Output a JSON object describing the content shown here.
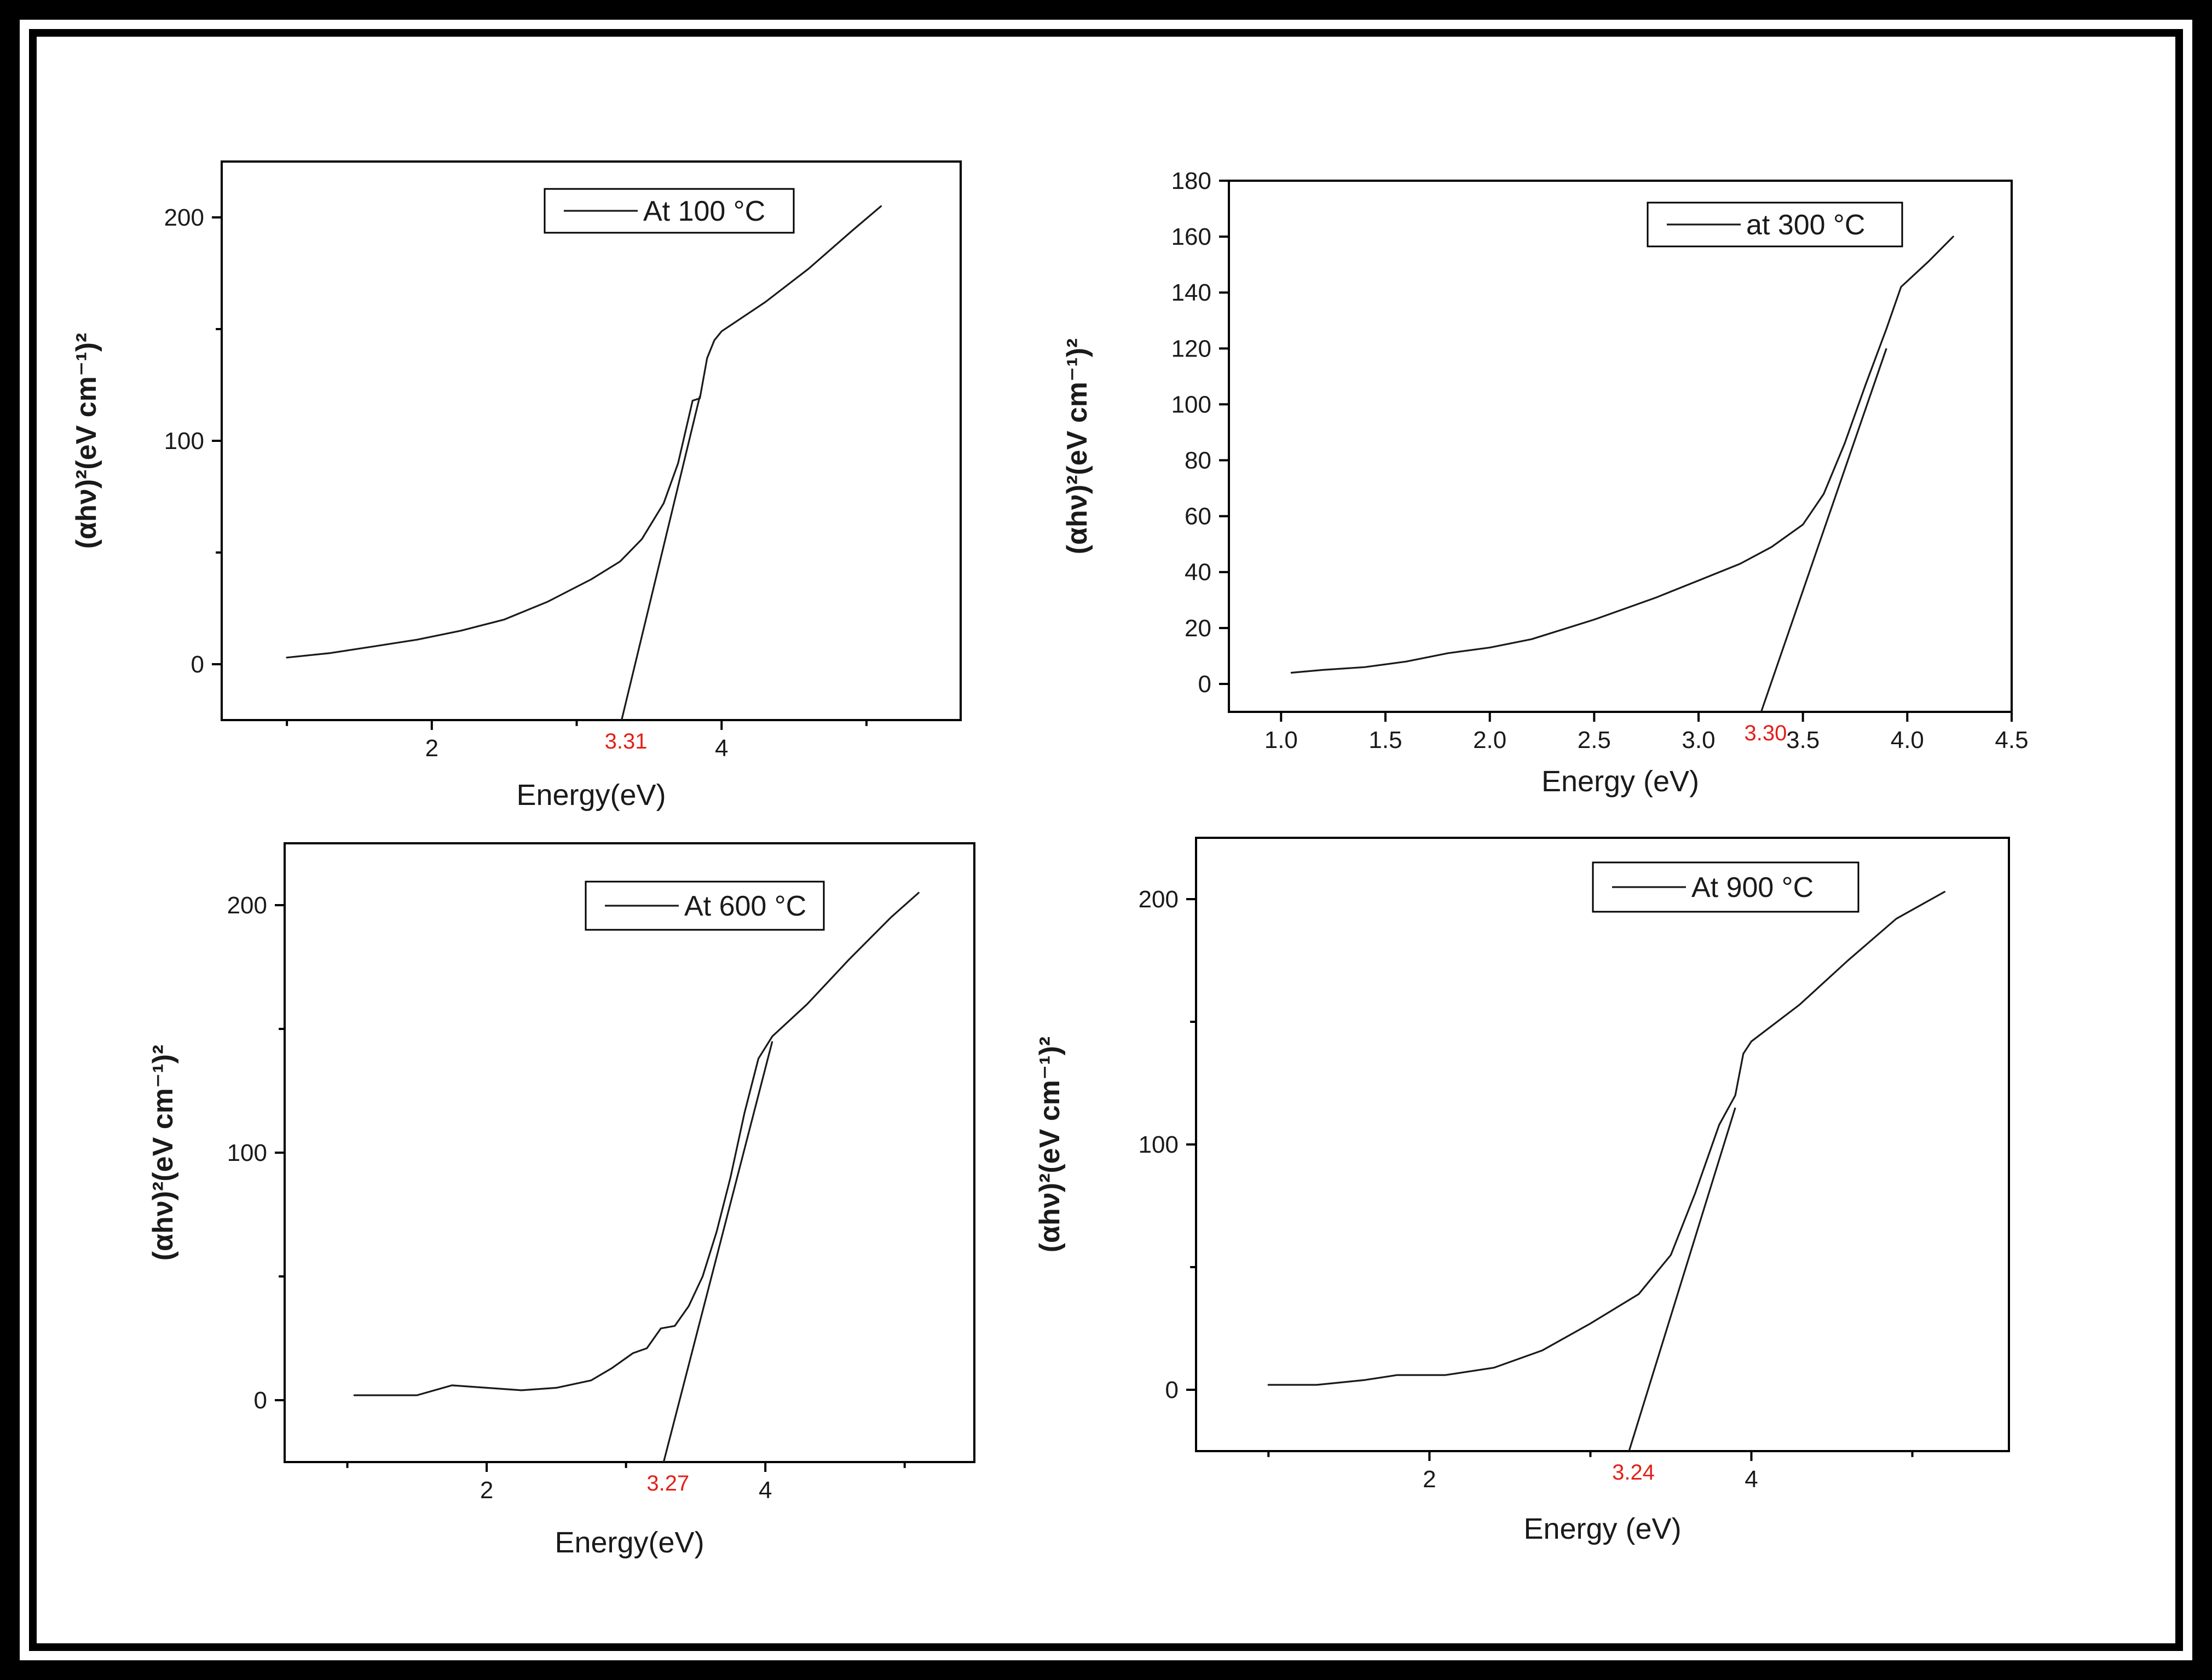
{
  "chart_data": [
    {
      "type": "line",
      "legend": "At 100 °C",
      "xlabel": "Energy(eV)",
      "ylabel": "(αhν)²(eV cm⁻¹)²",
      "xlim": [
        0.55,
        5.65
      ],
      "ylim": [
        -25,
        225
      ],
      "xticks": [
        2,
        4
      ],
      "yticks": [
        0,
        100,
        200
      ],
      "bandgap_label": "3.31",
      "series": [
        {
          "name": "At 100 °C",
          "x": [
            1.0,
            1.3,
            1.6,
            1.9,
            2.2,
            2.5,
            2.8,
            3.1,
            3.3,
            3.45,
            3.6,
            3.7,
            3.8,
            3.85,
            3.9,
            3.95,
            4.0,
            4.3,
            4.6,
            4.9,
            5.1
          ],
          "y": [
            3,
            5,
            8,
            11,
            15,
            20,
            28,
            38,
            46,
            56,
            72,
            90,
            118,
            119,
            137,
            145,
            149,
            162,
            177,
            194,
            205
          ]
        }
      ],
      "fit_line": {
        "x": [
          3.31,
          3.85
        ],
        "y": [
          -25,
          120
        ]
      },
      "legend_position": "top-right"
    },
    {
      "type": "line",
      "legend": "at 300 °C",
      "xlabel": "Energy (eV)",
      "ylabel": "(αhν)²(eV cm⁻¹)²",
      "xlim": [
        0.75,
        4.5
      ],
      "ylim": [
        -10,
        180
      ],
      "xticks": [
        "1.0",
        "1.5",
        "2.0",
        "2.5",
        "3.0",
        "3.5",
        "4.0",
        "4.5"
      ],
      "yticks": [
        0,
        20,
        40,
        60,
        80,
        100,
        120,
        140,
        160,
        180
      ],
      "bandgap_label": "3.30",
      "series": [
        {
          "name": "at 300 °C",
          "x": [
            1.05,
            1.2,
            1.4,
            1.6,
            1.8,
            2.0,
            2.2,
            2.5,
            2.8,
            3.0,
            3.2,
            3.35,
            3.5,
            3.6,
            3.7,
            3.8,
            3.9,
            3.97,
            4.1,
            4.22
          ],
          "y": [
            4,
            5,
            6,
            8,
            11,
            13,
            16,
            23,
            31,
            37,
            43,
            49,
            57,
            68,
            86,
            107,
            127,
            142,
            151,
            160
          ]
        }
      ],
      "fit_line": {
        "x": [
          3.3,
          3.9
        ],
        "y": [
          -10,
          120
        ]
      },
      "legend_position": "top-right"
    },
    {
      "type": "line",
      "legend": "At 600 °C",
      "xlabel": "Energy(eV)",
      "ylabel": "(αhν)²(eV cm⁻¹)²",
      "xlim": [
        0.55,
        5.5
      ],
      "ylim": [
        -25,
        225
      ],
      "xticks": [
        2,
        4
      ],
      "yticks": [
        0,
        100,
        200
      ],
      "bandgap_label": "3.27",
      "series": [
        {
          "name": "At 600 °C",
          "x": [
            1.05,
            1.25,
            1.5,
            1.75,
            2.0,
            2.25,
            2.5,
            2.75,
            2.9,
            3.05,
            3.15,
            3.25,
            3.35,
            3.45,
            3.55,
            3.65,
            3.75,
            3.85,
            3.95,
            4.05,
            4.3,
            4.6,
            4.9,
            5.1
          ],
          "y": [
            2,
            2,
            2,
            6,
            5,
            4,
            5,
            8,
            13,
            19,
            21,
            29,
            30,
            38,
            50,
            68,
            90,
            116,
            138,
            147,
            160,
            178,
            195,
            205
          ]
        }
      ],
      "fit_line": {
        "x": [
          3.27,
          4.05
        ],
        "y": [
          -25,
          145
        ]
      },
      "legend_position": "top-right"
    },
    {
      "type": "line",
      "legend": "At 900 °C",
      "xlabel": "Energy (eV)",
      "ylabel": "(αhν)²(eV cm⁻¹)²",
      "xlim": [
        0.55,
        5.6
      ],
      "ylim": [
        -25,
        225
      ],
      "xticks": [
        2,
        4
      ],
      "yticks": [
        0,
        100,
        200
      ],
      "bandgap_label": "3.24",
      "series": [
        {
          "name": "At 900 °C",
          "x": [
            1.0,
            1.3,
            1.6,
            1.8,
            2.1,
            2.4,
            2.7,
            3.0,
            3.3,
            3.5,
            3.65,
            3.8,
            3.9,
            3.95,
            4.0,
            4.3,
            4.6,
            4.9,
            5.2
          ],
          "y": [
            2,
            2,
            4,
            6,
            6,
            9,
            16,
            27,
            39,
            55,
            80,
            108,
            120,
            137,
            142,
            157,
            175,
            192,
            203
          ]
        }
      ],
      "fit_line": {
        "x": [
          3.24,
          3.9
        ],
        "y": [
          -25,
          115
        ]
      },
      "legend_position": "top-right"
    }
  ]
}
